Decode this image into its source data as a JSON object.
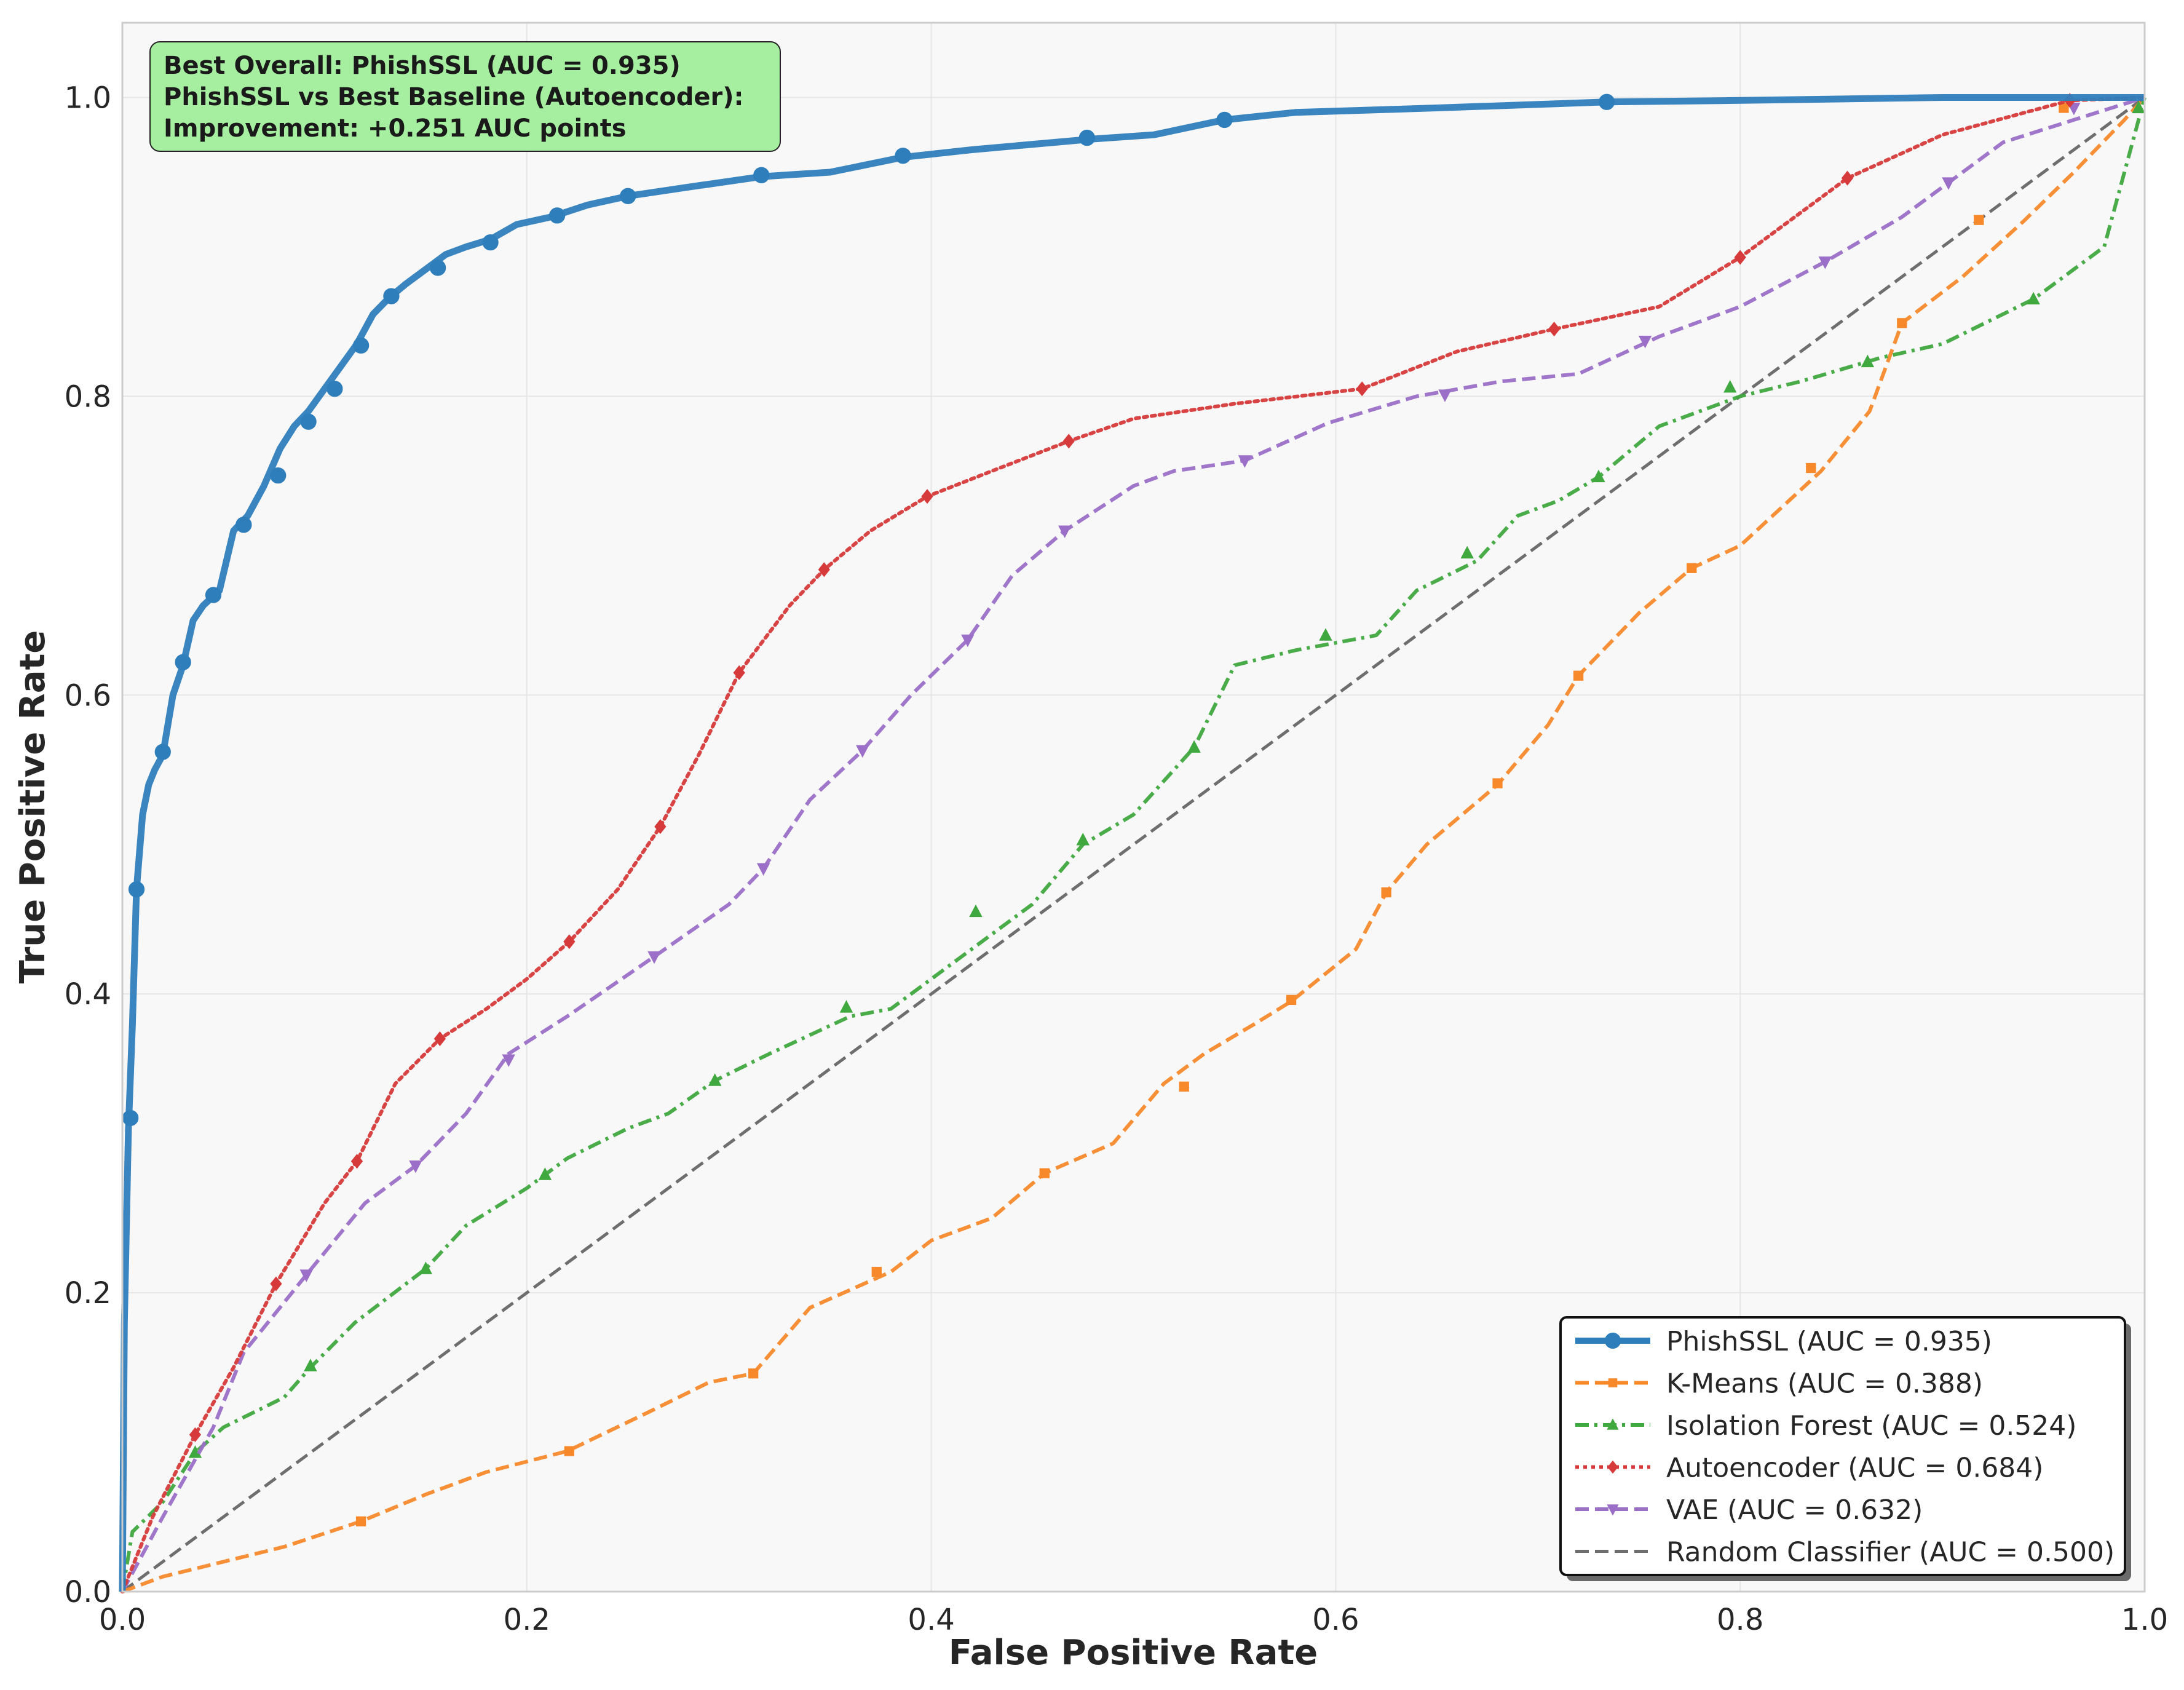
{
  "chart_data": {
    "type": "line",
    "title": "",
    "xlabel": "False Positive Rate",
    "ylabel": "True Positive Rate",
    "xlim": [
      0.0,
      1.0
    ],
    "ylim": [
      0.0,
      1.05
    ],
    "grid": true,
    "legend_position": "lower-right",
    "x_ticks": [
      "0.0",
      "0.2",
      "0.4",
      "0.6",
      "0.8",
      "1.0"
    ],
    "y_ticks": [
      "0.0",
      "0.2",
      "0.4",
      "0.6",
      "0.8",
      "1.0"
    ],
    "annotation": {
      "lines": [
        "Best Overall: PhishSSL (AUC = 0.935)",
        "PhishSSL vs Best Baseline (Autoencoder):",
        "Improvement: +0.251 AUC points"
      ],
      "background": "#a6eea0"
    },
    "series": [
      {
        "name": "PhishSSL (AUC = 0.935)",
        "color": "#2f7ebc",
        "marker": "circle",
        "dash": "solid",
        "x": [
          0.0,
          0.001,
          0.003,
          0.005,
          0.007,
          0.01,
          0.013,
          0.016,
          0.02,
          0.025,
          0.03,
          0.035,
          0.04,
          0.048,
          0.055,
          0.062,
          0.07,
          0.078,
          0.085,
          0.092,
          0.1,
          0.108,
          0.116,
          0.124,
          0.132,
          0.14,
          0.15,
          0.16,
          0.17,
          0.182,
          0.195,
          0.212,
          0.23,
          0.25,
          0.28,
          0.316,
          0.35,
          0.386,
          0.42,
          0.478,
          0.51,
          0.545,
          0.58,
          0.65,
          0.734,
          0.8,
          0.9,
          1.0
        ],
        "y": [
          0.0,
          0.18,
          0.31,
          0.38,
          0.47,
          0.52,
          0.54,
          0.55,
          0.56,
          0.6,
          0.62,
          0.65,
          0.66,
          0.67,
          0.71,
          0.72,
          0.74,
          0.765,
          0.78,
          0.79,
          0.805,
          0.82,
          0.835,
          0.855,
          0.866,
          0.875,
          0.885,
          0.895,
          0.9,
          0.905,
          0.915,
          0.92,
          0.928,
          0.934,
          0.94,
          0.947,
          0.95,
          0.96,
          0.965,
          0.972,
          0.975,
          0.985,
          0.99,
          0.993,
          0.997,
          0.998,
          1.0,
          1.0
        ],
        "markers": [
          [
            0.004,
            0.317
          ],
          [
            0.007,
            0.47
          ],
          [
            0.02,
            0.562
          ],
          [
            0.03,
            0.622
          ],
          [
            0.045,
            0.667
          ],
          [
            0.06,
            0.714
          ],
          [
            0.077,
            0.747
          ],
          [
            0.092,
            0.783
          ],
          [
            0.105,
            0.805
          ],
          [
            0.118,
            0.834
          ],
          [
            0.133,
            0.867
          ],
          [
            0.156,
            0.886
          ],
          [
            0.182,
            0.903
          ],
          [
            0.215,
            0.921
          ],
          [
            0.25,
            0.934
          ],
          [
            0.316,
            0.948
          ],
          [
            0.386,
            0.961
          ],
          [
            0.477,
            0.973
          ],
          [
            0.545,
            0.985
          ],
          [
            0.734,
            0.997
          ]
        ]
      },
      {
        "name": "K-Means (AUC = 0.388)",
        "color": "#f7892b",
        "marker": "square",
        "dash": "dashed",
        "x": [
          0.0,
          0.02,
          0.05,
          0.08,
          0.118,
          0.15,
          0.18,
          0.22,
          0.26,
          0.29,
          0.312,
          0.34,
          0.38,
          0.4,
          0.43,
          0.456,
          0.49,
          0.515,
          0.535,
          0.56,
          0.578,
          0.61,
          0.625,
          0.645,
          0.68,
          0.705,
          0.72,
          0.75,
          0.776,
          0.8,
          0.84,
          0.864,
          0.88,
          0.91,
          0.94,
          0.965,
          0.99,
          1.0
        ],
        "y": [
          0.0,
          0.01,
          0.02,
          0.03,
          0.047,
          0.065,
          0.08,
          0.094,
          0.12,
          0.14,
          0.146,
          0.19,
          0.214,
          0.235,
          0.25,
          0.28,
          0.3,
          0.34,
          0.36,
          0.38,
          0.395,
          0.43,
          0.468,
          0.5,
          0.54,
          0.58,
          0.613,
          0.655,
          0.685,
          0.7,
          0.75,
          0.79,
          0.849,
          0.88,
          0.917,
          0.95,
          0.985,
          1.0
        ],
        "markers": [
          [
            0.118,
            0.047
          ],
          [
            0.221,
            0.094
          ],
          [
            0.312,
            0.146
          ],
          [
            0.373,
            0.214
          ],
          [
            0.456,
            0.28
          ],
          [
            0.525,
            0.338
          ],
          [
            0.578,
            0.396
          ],
          [
            0.625,
            0.468
          ],
          [
            0.68,
            0.541
          ],
          [
            0.72,
            0.613
          ],
          [
            0.776,
            0.685
          ],
          [
            0.835,
            0.752
          ],
          [
            0.88,
            0.849
          ],
          [
            0.918,
            0.918
          ],
          [
            0.96,
            0.993
          ]
        ]
      },
      {
        "name": "Isolation Forest (AUC = 0.524)",
        "color": "#3fa83f",
        "marker": "triangle",
        "dash": "dashdot",
        "x": [
          0.0,
          0.005,
          0.02,
          0.036,
          0.05,
          0.08,
          0.093,
          0.115,
          0.15,
          0.17,
          0.2,
          0.22,
          0.25,
          0.27,
          0.293,
          0.32,
          0.36,
          0.38,
          0.42,
          0.45,
          0.475,
          0.5,
          0.53,
          0.55,
          0.58,
          0.62,
          0.64,
          0.67,
          0.69,
          0.71,
          0.73,
          0.76,
          0.8,
          0.83,
          0.87,
          0.9,
          0.945,
          0.98,
          1.0
        ],
        "y": [
          0.0,
          0.04,
          0.06,
          0.093,
          0.11,
          0.13,
          0.15,
          0.18,
          0.216,
          0.245,
          0.27,
          0.29,
          0.31,
          0.32,
          0.342,
          0.36,
          0.385,
          0.39,
          0.43,
          0.46,
          0.5,
          0.52,
          0.565,
          0.62,
          0.63,
          0.64,
          0.67,
          0.69,
          0.72,
          0.73,
          0.746,
          0.78,
          0.8,
          0.81,
          0.826,
          0.835,
          0.865,
          0.9,
          1.0
        ],
        "markers": [
          [
            0.036,
            0.093
          ],
          [
            0.093,
            0.151
          ],
          [
            0.15,
            0.216
          ],
          [
            0.209,
            0.279
          ],
          [
            0.293,
            0.342
          ],
          [
            0.358,
            0.391
          ],
          [
            0.422,
            0.455
          ],
          [
            0.475,
            0.503
          ],
          [
            0.53,
            0.565
          ],
          [
            0.595,
            0.64
          ],
          [
            0.665,
            0.695
          ],
          [
            0.73,
            0.746
          ],
          [
            0.795,
            0.806
          ],
          [
            0.863,
            0.823
          ],
          [
            0.945,
            0.865
          ],
          [
            0.997,
            0.993
          ]
        ]
      },
      {
        "name": "Autoencoder (AUC = 0.684)",
        "color": "#d63a3a",
        "marker": "diamond",
        "dash": "dotted",
        "x": [
          0.0,
          0.015,
          0.036,
          0.055,
          0.076,
          0.1,
          0.116,
          0.135,
          0.157,
          0.18,
          0.2,
          0.221,
          0.245,
          0.266,
          0.285,
          0.305,
          0.33,
          0.347,
          0.37,
          0.398,
          0.43,
          0.468,
          0.5,
          0.55,
          0.613,
          0.66,
          0.708,
          0.76,
          0.8,
          0.853,
          0.9,
          0.963,
          1.0
        ],
        "y": [
          0.0,
          0.05,
          0.105,
          0.15,
          0.206,
          0.26,
          0.288,
          0.34,
          0.37,
          0.39,
          0.41,
          0.435,
          0.47,
          0.512,
          0.56,
          0.615,
          0.66,
          0.684,
          0.71,
          0.733,
          0.75,
          0.77,
          0.785,
          0.795,
          0.805,
          0.83,
          0.845,
          0.86,
          0.893,
          0.946,
          0.975,
          0.998,
          1.0
        ],
        "markers": [
          [
            0.036,
            0.105
          ],
          [
            0.076,
            0.206
          ],
          [
            0.116,
            0.288
          ],
          [
            0.157,
            0.37
          ],
          [
            0.221,
            0.435
          ],
          [
            0.266,
            0.512
          ],
          [
            0.305,
            0.615
          ],
          [
            0.347,
            0.684
          ],
          [
            0.398,
            0.733
          ],
          [
            0.468,
            0.77
          ],
          [
            0.613,
            0.805
          ],
          [
            0.708,
            0.845
          ],
          [
            0.8,
            0.893
          ],
          [
            0.853,
            0.946
          ],
          [
            0.963,
            0.998
          ]
        ]
      },
      {
        "name": "VAE (AUC = 0.632)",
        "color": "#9b6fc8",
        "marker": "triangle-down",
        "dash": "dashed",
        "x": [
          0.0,
          0.02,
          0.045,
          0.06,
          0.091,
          0.12,
          0.145,
          0.17,
          0.191,
          0.22,
          0.263,
          0.3,
          0.317,
          0.34,
          0.366,
          0.39,
          0.418,
          0.44,
          0.466,
          0.5,
          0.52,
          0.555,
          0.596,
          0.64,
          0.682,
          0.72,
          0.76,
          0.8,
          0.842,
          0.88,
          0.903,
          0.93,
          0.965,
          1.0
        ],
        "y": [
          0.0,
          0.05,
          0.11,
          0.16,
          0.212,
          0.26,
          0.285,
          0.32,
          0.36,
          0.385,
          0.425,
          0.46,
          0.484,
          0.53,
          0.563,
          0.6,
          0.637,
          0.68,
          0.71,
          0.74,
          0.75,
          0.757,
          0.782,
          0.8,
          0.81,
          0.815,
          0.84,
          0.86,
          0.89,
          0.92,
          0.943,
          0.97,
          0.985,
          1.0
        ],
        "markers": [
          [
            0.091,
            0.212
          ],
          [
            0.145,
            0.285
          ],
          [
            0.191,
            0.356
          ],
          [
            0.263,
            0.425
          ],
          [
            0.317,
            0.484
          ],
          [
            0.366,
            0.563
          ],
          [
            0.418,
            0.637
          ],
          [
            0.466,
            0.71
          ],
          [
            0.555,
            0.757
          ],
          [
            0.654,
            0.801
          ],
          [
            0.753,
            0.837
          ],
          [
            0.842,
            0.89
          ],
          [
            0.903,
            0.943
          ],
          [
            0.965,
            0.993
          ]
        ]
      },
      {
        "name": "Random Classifier (AUC = 0.500)",
        "color": "#6e6e6e",
        "marker": "none",
        "dash": "dashed",
        "x": [
          0.0,
          1.0
        ],
        "y": [
          0.0,
          1.0
        ],
        "markers": []
      }
    ]
  }
}
